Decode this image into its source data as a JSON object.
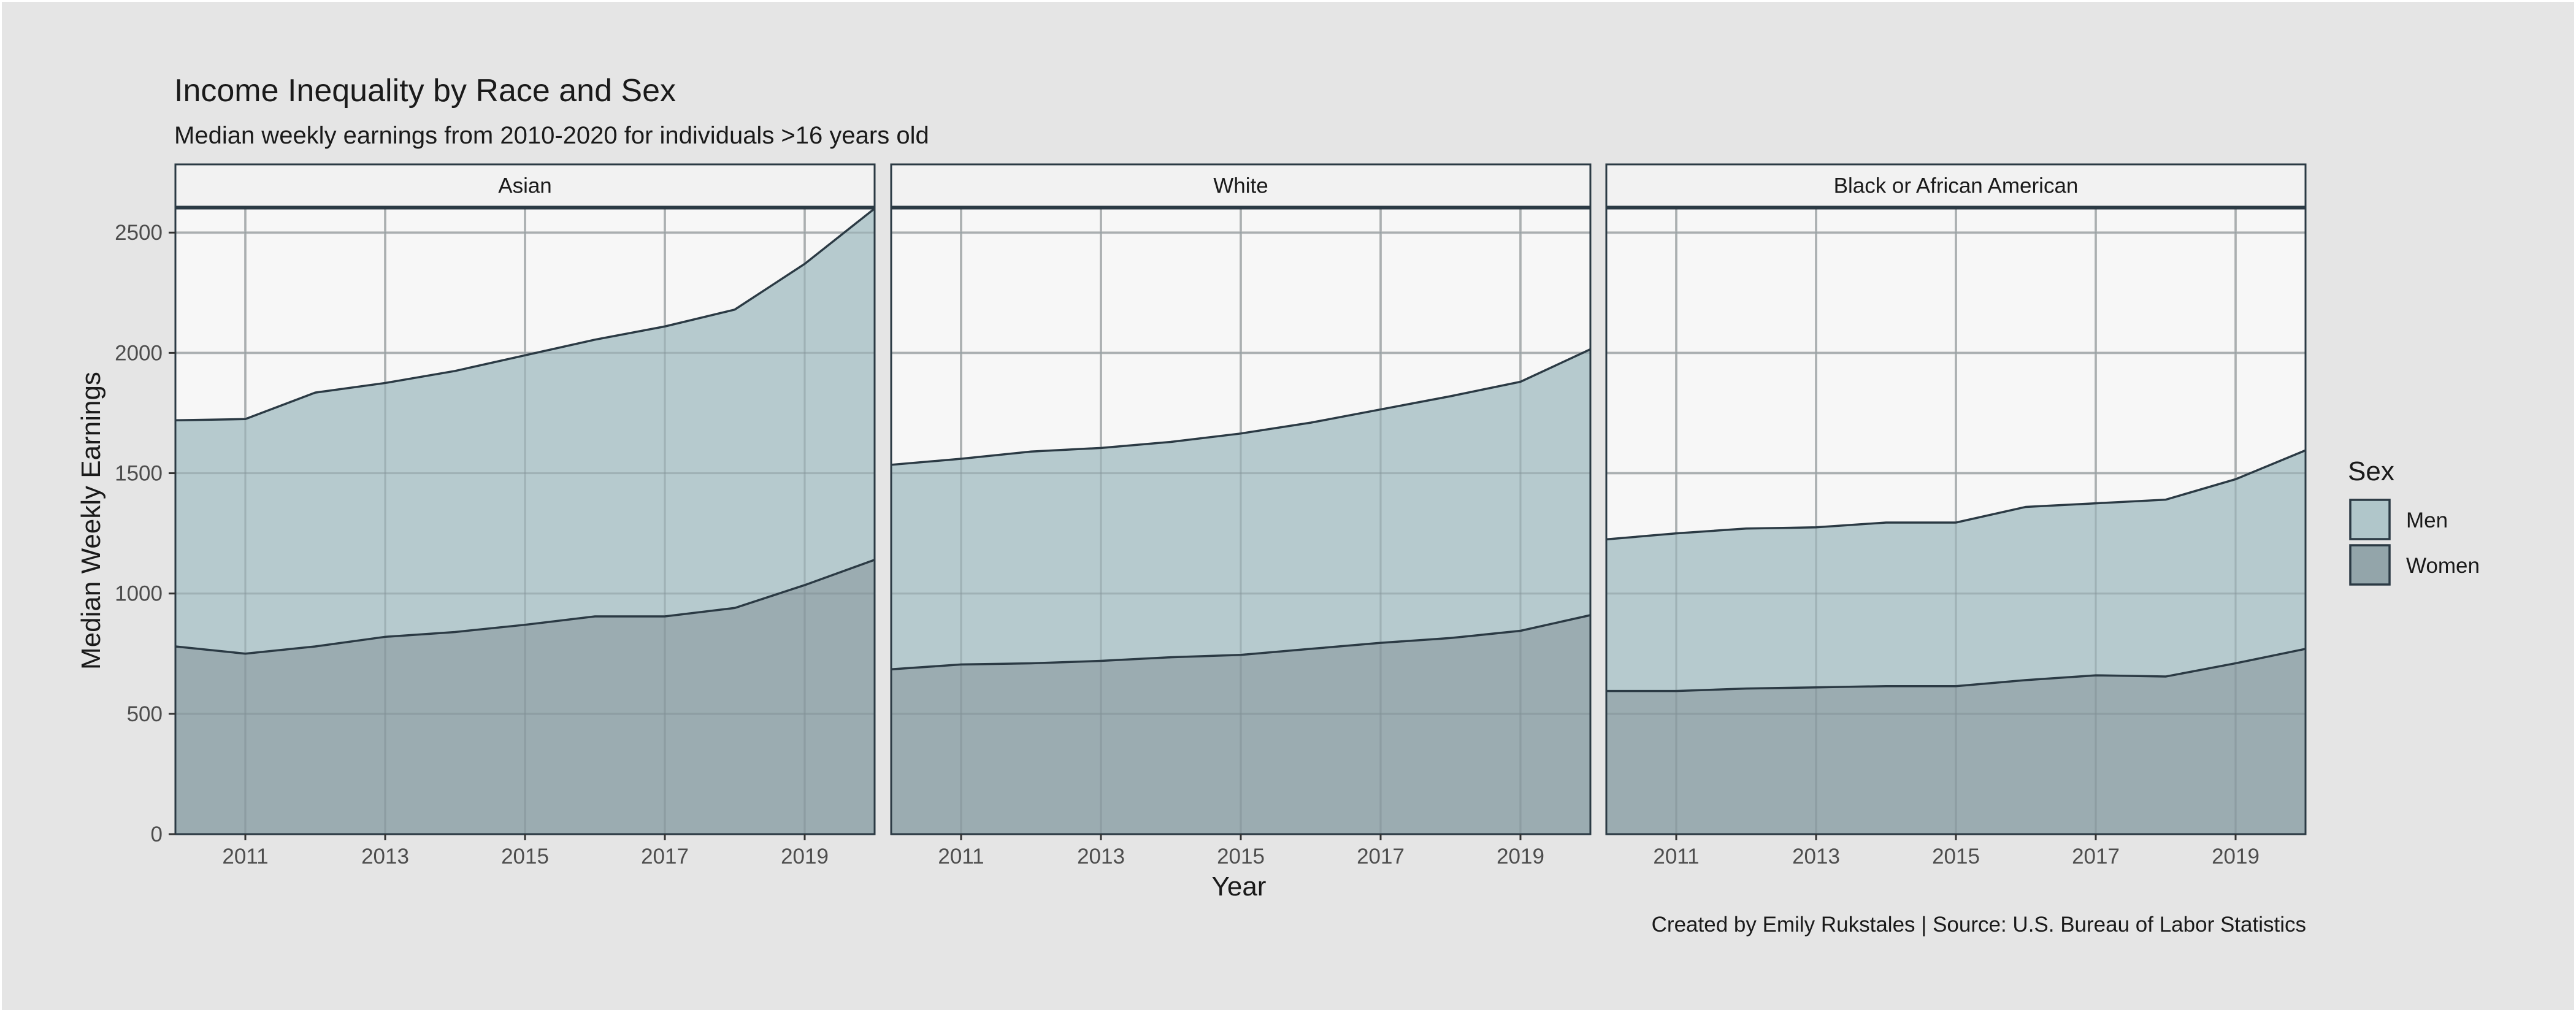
{
  "colors": {
    "background": "#e5e5e5",
    "panel": "#f7f7f7",
    "grid": "#c4c4c4",
    "strip": "#f2f2f2",
    "outline": "#2b3a44",
    "men_fill": "#b0c6ca",
    "women_fill": "#93a5aa",
    "text": "#1a1a1a",
    "tick_text": "#4d4d4d"
  },
  "chart_data": {
    "type": "area",
    "title": "Income Inequality by Race and Sex",
    "subtitle": "Median weekly earnings from 2010-2020 for individuals >16 years old",
    "xlabel": "Year",
    "ylabel": "Median Weekly Earnings",
    "caption": "Created by Emily Rukstales | Source: U.S. Bureau of Labor Statistics",
    "x": [
      2010,
      2011,
      2012,
      2013,
      2014,
      2015,
      2016,
      2017,
      2018,
      2019,
      2020
    ],
    "xlim": [
      2010,
      2020
    ],
    "ylim": [
      0,
      2600
    ],
    "x_ticks": [
      "2011",
      "2013",
      "2015",
      "2017",
      "2019"
    ],
    "y_ticks": [
      "0",
      "500",
      "1000",
      "1500",
      "2000",
      "2500"
    ],
    "stacked": true,
    "grid": true,
    "legend": {
      "title": "Sex",
      "position": "right",
      "items": [
        {
          "label": "Men",
          "color": "#b0c6ca"
        },
        {
          "label": "Women",
          "color": "#93a5aa"
        }
      ]
    },
    "facets": [
      {
        "label": "Asian",
        "series": [
          {
            "name": "Women",
            "values": [
              780,
              750,
              780,
              820,
              840,
              870,
              905,
              905,
              940,
              1035,
              1140
            ]
          },
          {
            "name": "Men",
            "values": [
              940,
              975,
              1055,
              1055,
              1085,
              1120,
              1150,
              1205,
              1240,
              1335,
              1460
            ]
          }
        ]
      },
      {
        "label": "White",
        "series": [
          {
            "name": "Women",
            "values": [
              685,
              705,
              710,
              720,
              735,
              745,
              770,
              795,
              815,
              845,
              910
            ]
          },
          {
            "name": "Men",
            "values": [
              850,
              855,
              880,
              885,
              895,
              920,
              940,
              970,
              1005,
              1035,
              1105
            ]
          }
        ]
      },
      {
        "label": "Black or African American",
        "series": [
          {
            "name": "Women",
            "values": [
              595,
              595,
              605,
              610,
              615,
              615,
              640,
              660,
              655,
              710,
              770
            ]
          },
          {
            "name": "Men",
            "values": [
              630,
              655,
              665,
              665,
              680,
              680,
              720,
              715,
              735,
              765,
              825
            ]
          }
        ]
      }
    ]
  }
}
